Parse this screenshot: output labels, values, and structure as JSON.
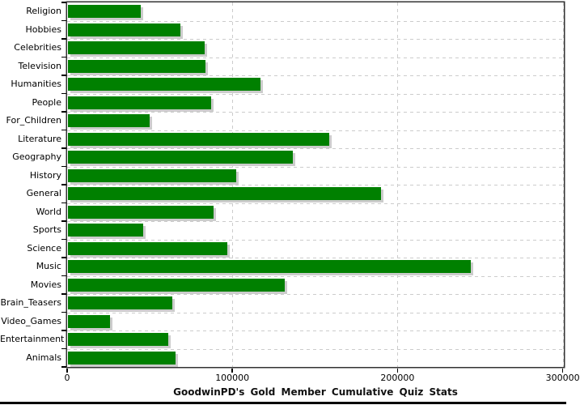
{
  "chart_data": {
    "type": "bar",
    "orientation": "horizontal",
    "title": "GoodwinPD's Gold Member Cumulative Quiz Stats",
    "categories": [
      "Religion",
      "Hobbies",
      "Celebrities",
      "Television",
      "Humanities",
      "People",
      "For_Children",
      "Literature",
      "Geography",
      "History",
      "General",
      "World",
      "Sports",
      "Science",
      "Music",
      "Movies",
      "Brain_Teasers",
      "Video_Games",
      "Entertainment",
      "Animals"
    ],
    "values": [
      44300,
      68000,
      83000,
      83400,
      116700,
      86800,
      49700,
      158300,
      136200,
      102100,
      189700,
      88300,
      45700,
      96700,
      243700,
      131100,
      63100,
      25300,
      60700,
      65100
    ],
    "xlabel": "",
    "ylabel": "",
    "xlim": [
      0,
      300000
    ],
    "x_ticks": [
      0,
      100000,
      200000,
      300000
    ],
    "x_tick_labels": [
      "0",
      "100000",
      "200000",
      "300000"
    ],
    "grid": true,
    "legend": "none",
    "colors": {
      "bar_fill": "#008000",
      "bar_shadow": "#cccccc",
      "gridline": "#cccccc",
      "axis": "#000000",
      "plot_outline": "#333333",
      "background": "#ffffff",
      "text": "#000000"
    }
  }
}
